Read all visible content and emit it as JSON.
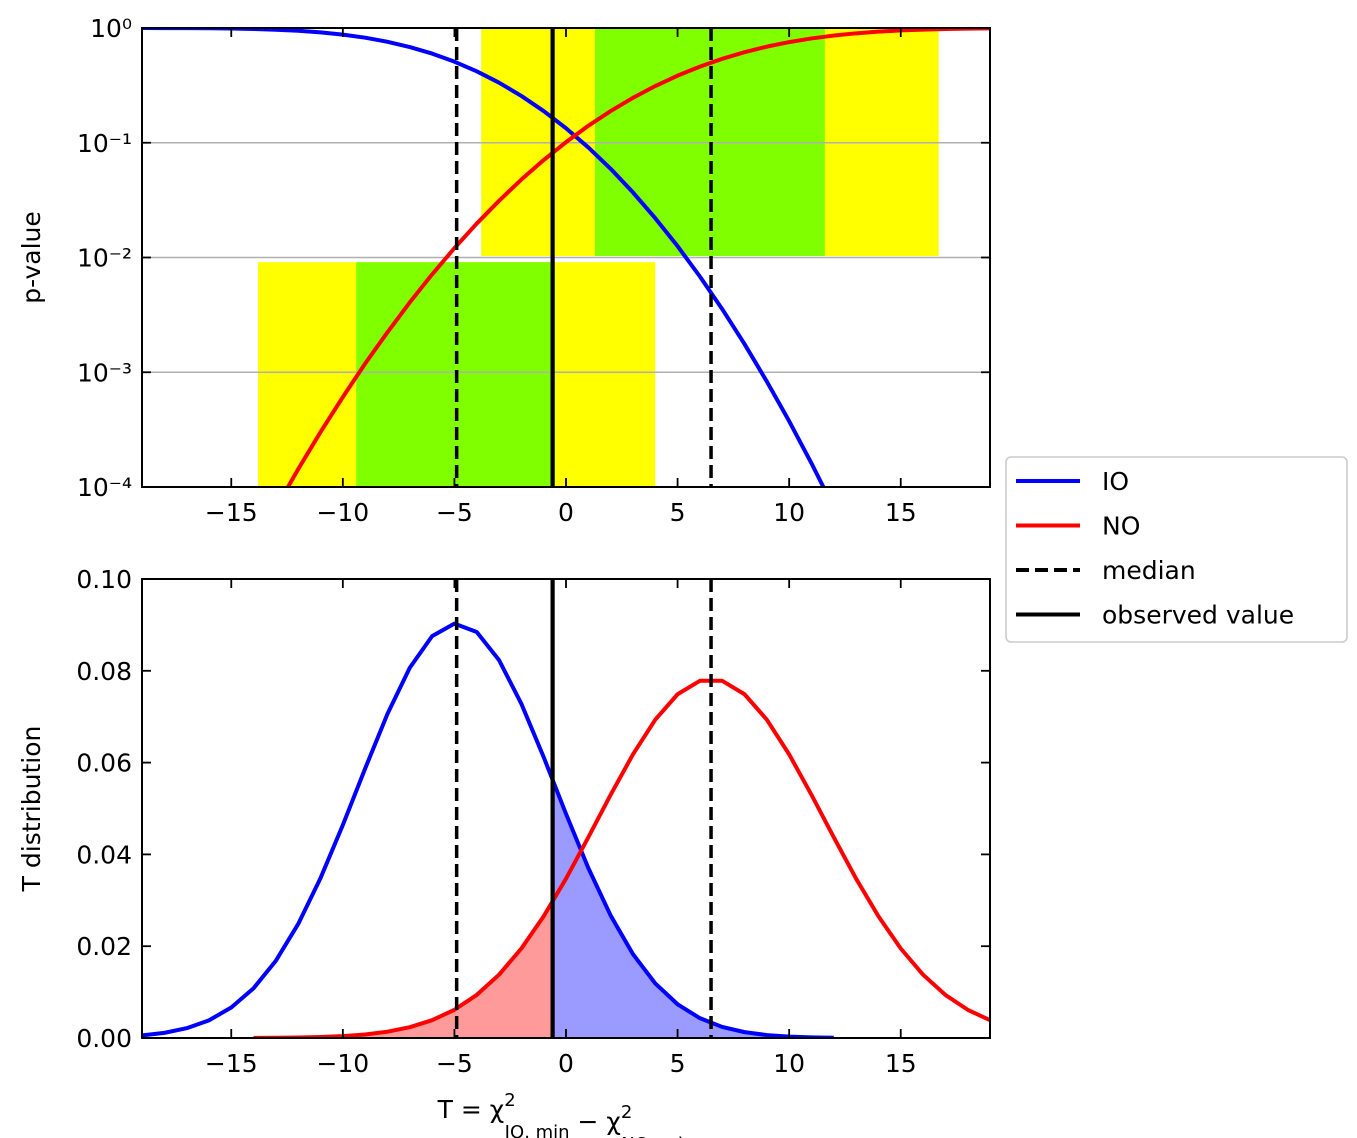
{
  "chart_data": [
    {
      "type": "line",
      "ylabel": "p-value",
      "ylog": true,
      "grid": true,
      "legend": "outside-right",
      "xlim": [
        -19,
        19
      ],
      "ylim": [
        0.0001,
        1
      ],
      "xticks": [
        {
          "value": -15,
          "label": "−15"
        },
        {
          "value": -10,
          "label": "−10"
        },
        {
          "value": -5,
          "label": "−5"
        },
        0,
        5,
        10,
        15
      ],
      "yticks": [
        {
          "value": 0.0001,
          "label": "10⁻⁴"
        },
        {
          "value": 0.001,
          "label": "10⁻³"
        },
        {
          "value": 0.01,
          "label": "10⁻²"
        },
        {
          "value": 0.1,
          "label": "10⁻¹"
        },
        {
          "value": 1,
          "label": "10⁰"
        }
      ],
      "bands": [
        {
          "x": [
            -13.8,
            4.0
          ],
          "y": [
            0.0001,
            0.0091
          ],
          "color": "#ffff00"
        },
        {
          "x": [
            -9.4,
            -0.5
          ],
          "y": [
            0.0001,
            0.0091
          ],
          "color": "#7fff00"
        },
        {
          "x": [
            -3.8,
            16.7
          ],
          "y": [
            0.0103,
            1
          ],
          "color": "#ffff00"
        },
        {
          "x": [
            1.3,
            11.6
          ],
          "y": [
            0.0103,
            1
          ],
          "color": "#7fff00"
        }
      ],
      "series": [
        {
          "name": "IO",
          "color": "#0000ff",
          "x": [
            -19,
            -18,
            -17,
            -16,
            -15,
            -14,
            -13,
            -12,
            -11,
            -10,
            -9,
            -8,
            -7,
            -6,
            -5,
            -4,
            -3,
            -2,
            -1,
            0,
            1,
            2,
            3,
            4,
            5,
            6,
            7,
            8,
            9,
            10,
            11,
            12
          ],
          "values": [
            0.99929,
            0.99848,
            0.99691,
            0.99398,
            0.98884,
            0.98025,
            0.9666,
            0.9459,
            0.9162,
            0.8757,
            0.8233,
            0.7584,
            0.6826,
            0.5983,
            0.509,
            0.4193,
            0.3336,
            0.2559,
            0.1888,
            0.1338,
            0.091,
            0.0593,
            0.0369,
            0.022,
            0.01255,
            0.00683,
            0.00355,
            0.00176,
            0.00083,
            0.000375,
            0.000161,
            6.58e-05
          ]
        },
        {
          "name": "NO",
          "color": "#ff0000",
          "x": [
            -13,
            -12,
            -11,
            -10,
            -9,
            -8,
            -7,
            -6,
            -5,
            -4,
            -3,
            -2,
            -1,
            0,
            1,
            2,
            3,
            4,
            5,
            6,
            7,
            8,
            9,
            10,
            11,
            12,
            13,
            14,
            15,
            16,
            17,
            18,
            19
          ],
          "values": [
            6.57e-05,
            0.000143,
            0.000301,
            0.000608,
            0.00119,
            0.00223,
            0.00406,
            0.00712,
            0.01207,
            0.01975,
            0.0312,
            0.0478,
            0.0707,
            0.1012,
            0.1405,
            0.1888,
            0.2463,
            0.3121,
            0.3844,
            0.461,
            0.539,
            0.6156,
            0.6879,
            0.7537,
            0.8112,
            0.8595,
            0.8988,
            0.9293,
            0.9522,
            0.9688,
            0.9803,
            0.9879,
            0.9929
          ]
        }
      ],
      "reference_lines": [
        {
          "name": "median",
          "style": "dashed",
          "color": "#000000",
          "x": [
            -4.9,
            6.5
          ]
        },
        {
          "name": "observed value",
          "style": "solid",
          "color": "#000000",
          "x": [
            -0.6
          ]
        }
      ]
    },
    {
      "type": "line",
      "ylabel": "T distribution",
      "ylog": false,
      "grid": false,
      "xlabel": [
        {
          "text": "T = χ"
        },
        {
          "text": "2",
          "pos": "sup"
        },
        {
          "text": "IO, min",
          "pos": "sub"
        },
        {
          "text": " − χ"
        },
        {
          "text": "2",
          "pos": "sup"
        },
        {
          "text": "NO, min",
          "pos": "sub"
        }
      ],
      "xlim": [
        -19,
        19
      ],
      "ylim": [
        0,
        0.1
      ],
      "xticks": [
        {
          "value": -15,
          "label": "−15"
        },
        {
          "value": -10,
          "label": "−10"
        },
        {
          "value": -5,
          "label": "−5"
        },
        0,
        5,
        10,
        15
      ],
      "yticks": [
        {
          "value": 0,
          "label": "0.00"
        },
        {
          "value": 0.02,
          "label": "0.02"
        },
        {
          "value": 0.04,
          "label": "0.04"
        },
        {
          "value": 0.06,
          "label": "0.06"
        },
        {
          "value": 0.08,
          "label": "0.08"
        },
        {
          "value": 0.1,
          "label": "0.10"
        }
      ],
      "series": [
        {
          "color": "#0000ff",
          "fill": {
            "color": "#9a9aff",
            "side": "right"
          },
          "x": [
            -19,
            -18,
            -17,
            -16,
            -15,
            -14,
            -13,
            -12,
            -11,
            -10,
            -9,
            -8,
            -7,
            -6,
            -5,
            -4,
            -3,
            -2,
            -1,
            0,
            1,
            2,
            3,
            4,
            5,
            6,
            7,
            8,
            9,
            10,
            11,
            12
          ],
          "values": [
            0.000556,
            0.00112,
            0.00213,
            0.00385,
            0.00664,
            0.01085,
            0.01684,
            0.02485,
            0.03484,
            0.04641,
            0.05872,
            0.07061,
            0.08067,
            0.08755,
            0.09028,
            0.08845,
            0.08233,
            0.07281,
            0.06119,
            0.04884,
            0.03704,
            0.0267,
            0.01828,
            0.01189,
            0.00735,
            0.00432,
            0.00241,
            0.00128,
            0.00064,
            0.00031,
            0.00014,
            6e-05
          ]
        },
        {
          "color": "#ff0000",
          "fill": {
            "color": "#ff9a9a",
            "side": "left"
          },
          "x": [
            -14,
            -13,
            -12,
            -11,
            -10,
            -9,
            -8,
            -7,
            -6,
            -5,
            -4,
            -3,
            -2,
            -1,
            0,
            1,
            2,
            3,
            4,
            5,
            6,
            7,
            8,
            9,
            10,
            11,
            12,
            13,
            14,
            15,
            16,
            17,
            18,
            19
          ],
          "values": [
            2.4e-05,
            5.2e-05,
            0.000109,
            0.000217,
            0.000417,
            0.000772,
            0.00137,
            0.00235,
            0.00388,
            0.00615,
            0.00939,
            0.01379,
            0.0195,
            0.02653,
            0.03471,
            0.04372,
            0.05299,
            0.06179,
            0.06935,
            0.07489,
            0.07782,
            0.07782,
            0.07489,
            0.06935,
            0.06179,
            0.05299,
            0.04372,
            0.03471,
            0.02653,
            0.0195,
            0.01379,
            0.00939,
            0.00615,
            0.00388
          ]
        }
      ],
      "reference_lines": [
        {
          "style": "dashed",
          "color": "#000000",
          "x": [
            -4.9,
            6.5
          ]
        },
        {
          "style": "solid",
          "color": "#000000",
          "x": [
            -0.6
          ]
        }
      ]
    }
  ]
}
